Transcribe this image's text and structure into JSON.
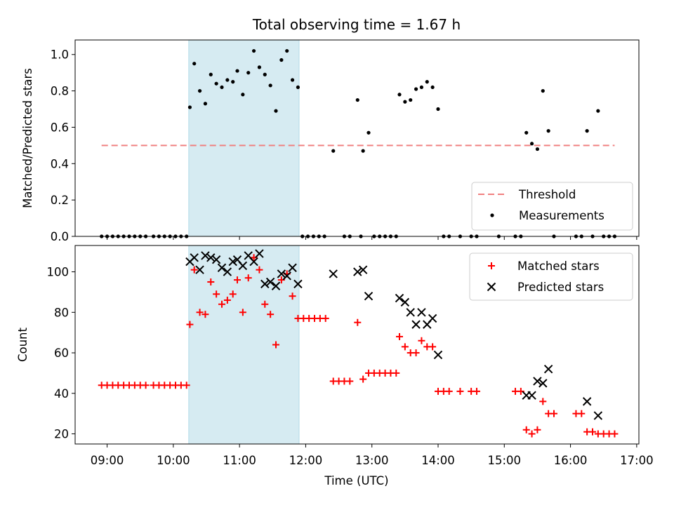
{
  "chart_data": {
    "title": "Total observing time = 1.67 h",
    "xlabel": "Time (UTC)",
    "xlim": [
      "08:31",
      "17:02"
    ],
    "xticks": [
      "09:00",
      "10:00",
      "11:00",
      "12:00",
      "13:00",
      "14:00",
      "15:00",
      "16:00",
      "17:00"
    ],
    "shaded_interval": [
      "10:14",
      "11:54"
    ],
    "colors": {
      "threshold": "#f08080",
      "shade": "#add8e6",
      "matched": "#ff0000",
      "predicted": "#000000",
      "measurements": "#000000"
    },
    "panels": [
      {
        "type": "scatter",
        "ylabel": "Matched/Predicted stars",
        "ylim": [
          0.0,
          1.08
        ],
        "yticks": [
          "0.0",
          "0.2",
          "0.4",
          "0.6",
          "0.8",
          "1.0"
        ],
        "legend": {
          "position": "lower-right",
          "entries": [
            "Threshold",
            "Measurements"
          ]
        },
        "threshold": {
          "name": "Threshold",
          "y": 0.5,
          "x_range": [
            "08:55",
            "16:40"
          ]
        },
        "series": [
          {
            "name": "Measurements",
            "marker": "dot",
            "points": [
              [
                "08:55",
                0.0
              ],
              [
                "09:00",
                0.0
              ],
              [
                "09:05",
                0.0
              ],
              [
                "09:10",
                0.0
              ],
              [
                "09:15",
                0.0
              ],
              [
                "09:20",
                0.0
              ],
              [
                "09:25",
                0.0
              ],
              [
                "09:30",
                0.0
              ],
              [
                "09:35",
                0.0
              ],
              [
                "09:42",
                0.0
              ],
              [
                "09:47",
                0.0
              ],
              [
                "09:52",
                0.0
              ],
              [
                "09:57",
                0.0
              ],
              [
                "10:02",
                0.0
              ],
              [
                "10:07",
                0.0
              ],
              [
                "10:12",
                0.0
              ],
              [
                "10:15",
                0.71
              ],
              [
                "10:19",
                0.95
              ],
              [
                "10:24",
                0.8
              ],
              [
                "10:29",
                0.73
              ],
              [
                "10:34",
                0.89
              ],
              [
                "10:39",
                0.84
              ],
              [
                "10:44",
                0.82
              ],
              [
                "10:49",
                0.86
              ],
              [
                "10:54",
                0.85
              ],
              [
                "10:58",
                0.91
              ],
              [
                "11:03",
                0.78
              ],
              [
                "11:08",
                0.9
              ],
              [
                "11:13",
                1.02
              ],
              [
                "11:18",
                0.93
              ],
              [
                "11:23",
                0.89
              ],
              [
                "11:28",
                0.83
              ],
              [
                "11:33",
                0.69
              ],
              [
                "11:38",
                0.97
              ],
              [
                "11:43",
                1.02
              ],
              [
                "11:48",
                0.86
              ],
              [
                "11:53",
                0.82
              ],
              [
                "11:57",
                0.0
              ],
              [
                "12:02",
                0.0
              ],
              [
                "12:07",
                0.0
              ],
              [
                "12:12",
                0.0
              ],
              [
                "12:17",
                0.0
              ],
              [
                "12:25",
                0.47
              ],
              [
                "12:35",
                0.0
              ],
              [
                "12:40",
                0.0
              ],
              [
                "12:47",
                0.75
              ],
              [
                "12:50",
                0.0
              ],
              [
                "12:52",
                0.47
              ],
              [
                "12:57",
                0.57
              ],
              [
                "13:02",
                0.0
              ],
              [
                "13:07",
                0.0
              ],
              [
                "13:12",
                0.0
              ],
              [
                "13:17",
                0.0
              ],
              [
                "13:22",
                0.0
              ],
              [
                "13:25",
                0.78
              ],
              [
                "13:30",
                0.74
              ],
              [
                "13:35",
                0.75
              ],
              [
                "13:40",
                0.81
              ],
              [
                "13:45",
                0.82
              ],
              [
                "13:50",
                0.85
              ],
              [
                "13:55",
                0.82
              ],
              [
                "14:00",
                0.7
              ],
              [
                "14:05",
                0.0
              ],
              [
                "14:10",
                0.0
              ],
              [
                "14:20",
                0.0
              ],
              [
                "14:30",
                0.0
              ],
              [
                "14:35",
                0.0
              ],
              [
                "14:55",
                0.0
              ],
              [
                "15:10",
                0.0
              ],
              [
                "15:15",
                0.0
              ],
              [
                "15:20",
                0.57
              ],
              [
                "15:25",
                0.51
              ],
              [
                "15:30",
                0.48
              ],
              [
                "15:35",
                0.8
              ],
              [
                "15:40",
                0.58
              ],
              [
                "15:45",
                0.0
              ],
              [
                "16:05",
                0.0
              ],
              [
                "16:10",
                0.0
              ],
              [
                "16:15",
                0.58
              ],
              [
                "16:20",
                0.0
              ],
              [
                "16:25",
                0.69
              ],
              [
                "16:30",
                0.0
              ],
              [
                "16:35",
                0.0
              ],
              [
                "16:40",
                0.0
              ]
            ]
          }
        ]
      },
      {
        "type": "scatter",
        "ylabel": "Count",
        "ylim": [
          15,
          113
        ],
        "yticks": [
          "20",
          "40",
          "60",
          "80",
          "100"
        ],
        "legend": {
          "position": "top-right",
          "entries": [
            "Matched stars",
            "Predicted stars"
          ]
        },
        "series": [
          {
            "name": "Matched stars",
            "marker": "plus",
            "points": [
              [
                "08:55",
                44
              ],
              [
                "09:00",
                44
              ],
              [
                "09:05",
                44
              ],
              [
                "09:10",
                44
              ],
              [
                "09:15",
                44
              ],
              [
                "09:20",
                44
              ],
              [
                "09:25",
                44
              ],
              [
                "09:30",
                44
              ],
              [
                "09:35",
                44
              ],
              [
                "09:42",
                44
              ],
              [
                "09:47",
                44
              ],
              [
                "09:52",
                44
              ],
              [
                "09:57",
                44
              ],
              [
                "10:02",
                44
              ],
              [
                "10:07",
                44
              ],
              [
                "10:12",
                44
              ],
              [
                "10:15",
                74
              ],
              [
                "10:19",
                101
              ],
              [
                "10:24",
                80
              ],
              [
                "10:29",
                79
              ],
              [
                "10:34",
                95
              ],
              [
                "10:39",
                89
              ],
              [
                "10:44",
                84
              ],
              [
                "10:49",
                86
              ],
              [
                "10:54",
                89
              ],
              [
                "10:58",
                96
              ],
              [
                "11:03",
                80
              ],
              [
                "11:08",
                97
              ],
              [
                "11:13",
                107
              ],
              [
                "11:18",
                101
              ],
              [
                "11:23",
                84
              ],
              [
                "11:28",
                79
              ],
              [
                "11:33",
                64
              ],
              [
                "11:38",
                96
              ],
              [
                "11:43",
                99
              ],
              [
                "11:48",
                88
              ],
              [
                "11:53",
                77
              ],
              [
                "11:58",
                77
              ],
              [
                "12:03",
                77
              ],
              [
                "12:08",
                77
              ],
              [
                "12:13",
                77
              ],
              [
                "12:18",
                77
              ],
              [
                "12:25",
                46
              ],
              [
                "12:30",
                46
              ],
              [
                "12:35",
                46
              ],
              [
                "12:40",
                46
              ],
              [
                "12:47",
                75
              ],
              [
                "12:52",
                47
              ],
              [
                "12:57",
                50
              ],
              [
                "13:02",
                50
              ],
              [
                "13:07",
                50
              ],
              [
                "13:12",
                50
              ],
              [
                "13:17",
                50
              ],
              [
                "13:22",
                50
              ],
              [
                "13:25",
                68
              ],
              [
                "13:30",
                63
              ],
              [
                "13:35",
                60
              ],
              [
                "13:40",
                60
              ],
              [
                "13:45",
                66
              ],
              [
                "13:50",
                63
              ],
              [
                "13:55",
                63
              ],
              [
                "14:00",
                41
              ],
              [
                "14:05",
                41
              ],
              [
                "14:10",
                41
              ],
              [
                "14:20",
                41
              ],
              [
                "14:30",
                41
              ],
              [
                "14:35",
                41
              ],
              [
                "15:10",
                41
              ],
              [
                "15:15",
                41
              ],
              [
                "15:20",
                22
              ],
              [
                "15:25",
                20
              ],
              [
                "15:30",
                22
              ],
              [
                "15:35",
                36
              ],
              [
                "15:40",
                30
              ],
              [
                "15:45",
                30
              ],
              [
                "16:05",
                30
              ],
              [
                "16:10",
                30
              ],
              [
                "16:15",
                21
              ],
              [
                "16:20",
                21
              ],
              [
                "16:25",
                20
              ],
              [
                "16:30",
                20
              ],
              [
                "16:35",
                20
              ],
              [
                "16:40",
                20
              ]
            ]
          },
          {
            "name": "Predicted stars",
            "marker": "x",
            "points": [
              [
                "10:15",
                105
              ],
              [
                "10:19",
                107
              ],
              [
                "10:24",
                101
              ],
              [
                "10:29",
                108
              ],
              [
                "10:34",
                107
              ],
              [
                "10:39",
                106
              ],
              [
                "10:44",
                102
              ],
              [
                "10:49",
                100
              ],
              [
                "10:54",
                105
              ],
              [
                "10:58",
                106
              ],
              [
                "11:03",
                103
              ],
              [
                "11:08",
                108
              ],
              [
                "11:13",
                105
              ],
              [
                "11:18",
                109
              ],
              [
                "11:23",
                94
              ],
              [
                "11:28",
                95
              ],
              [
                "11:33",
                93
              ],
              [
                "11:38",
                99
              ],
              [
                "11:43",
                98
              ],
              [
                "11:48",
                102
              ],
              [
                "11:53",
                94
              ],
              [
                "12:25",
                99
              ],
              [
                "12:47",
                100
              ],
              [
                "12:52",
                101
              ],
              [
                "12:57",
                88
              ],
              [
                "13:25",
                87
              ],
              [
                "13:30",
                85
              ],
              [
                "13:35",
                80
              ],
              [
                "13:40",
                74
              ],
              [
                "13:45",
                80
              ],
              [
                "13:50",
                74
              ],
              [
                "13:55",
                77
              ],
              [
                "14:00",
                59
              ],
              [
                "15:20",
                39
              ],
              [
                "15:25",
                39
              ],
              [
                "15:30",
                46
              ],
              [
                "15:35",
                45
              ],
              [
                "15:40",
                52
              ],
              [
                "16:15",
                36
              ],
              [
                "16:25",
                29
              ]
            ]
          }
        ]
      }
    ]
  }
}
